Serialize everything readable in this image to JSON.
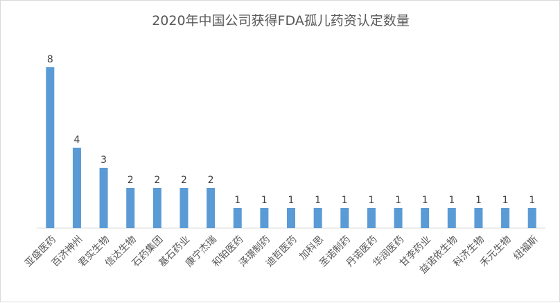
{
  "chart_data": {
    "type": "bar",
    "title": "2020年中国公司获得FDA孤儿药资认定数量",
    "xlabel": "",
    "ylabel": "",
    "ylim": [
      0,
      10
    ],
    "grid": false,
    "legend": "none",
    "bar_color": "#5b9bd5",
    "categories": [
      "亚盛医药",
      "百济神州",
      "君实生物",
      "信达生物",
      "石药集团",
      "基石药业",
      "康宁杰瑞",
      "和铂医药",
      "泽璟制药",
      "迪哲医药",
      "加科思",
      "圣诺制药",
      "丹诺医药",
      "华润医药",
      "甘李药业",
      "益诺依生物",
      "科济生物",
      "禾元生物",
      "纽福斯"
    ],
    "values": [
      8,
      4,
      3,
      2,
      2,
      2,
      2,
      1,
      1,
      1,
      1,
      1,
      1,
      1,
      1,
      1,
      1,
      1,
      1
    ]
  }
}
